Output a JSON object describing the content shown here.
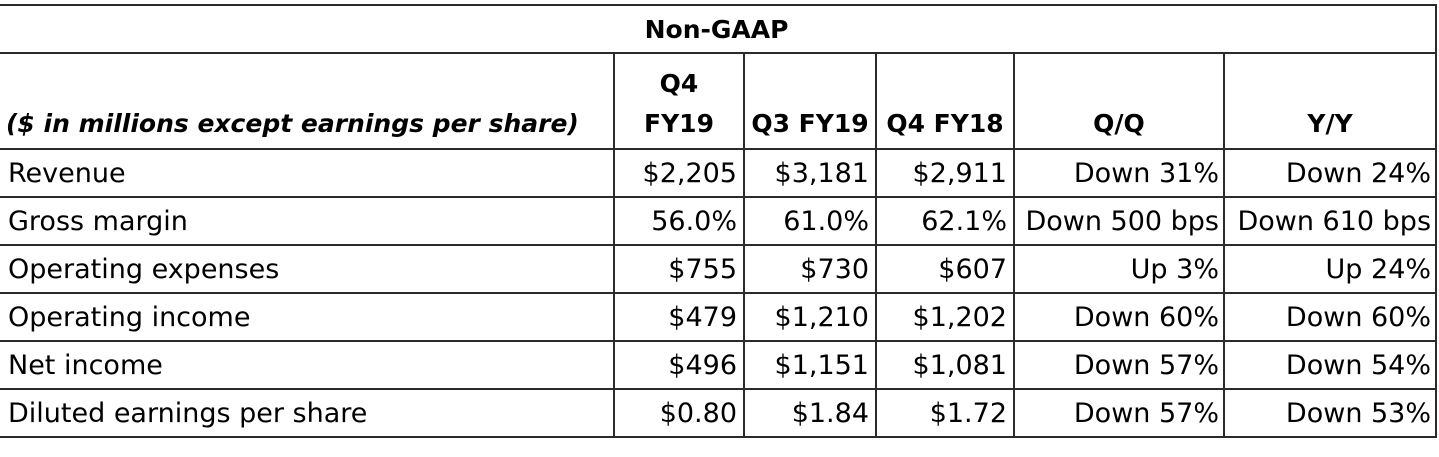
{
  "table": {
    "title": "Non-GAAP",
    "columns": [
      "($ in millions except earnings per share)",
      "Q4 FY19",
      "Q3 FY19",
      "Q4 FY18",
      "Q/Q",
      "Y/Y"
    ],
    "rows": [
      {
        "metric": "Revenue",
        "q4fy19": "$2,205",
        "q3fy19": "$3,181",
        "q4fy18": "$2,911",
        "qq": "Down 31%",
        "yy": "Down 24%"
      },
      {
        "metric": "Gross margin",
        "q4fy19": "56.0%",
        "q3fy19": "61.0%",
        "q4fy18": "62.1%",
        "qq": "Down 500 bps",
        "yy": "Down 610 bps"
      },
      {
        "metric": "Operating expenses",
        "q4fy19": "$755",
        "q3fy19": "$730",
        "q4fy18": "$607",
        "qq": "Up 3%",
        "yy": "Up 24%"
      },
      {
        "metric": "Operating income",
        "q4fy19": "$479",
        "q3fy19": "$1,210",
        "q4fy18": "$1,202",
        "qq": "Down 60%",
        "yy": "Down 60%"
      },
      {
        "metric": "Net income",
        "q4fy19": "$496",
        "q3fy19": "$1,151",
        "q4fy18": "$1,081",
        "qq": "Down 57%",
        "yy": "Down 54%"
      },
      {
        "metric": "Diluted earnings per share",
        "q4fy19": "$0.80",
        "q3fy19": "$1.84",
        "q4fy18": "$1.72",
        "qq": "Down 57%",
        "yy": "Down 53%"
      }
    ]
  }
}
